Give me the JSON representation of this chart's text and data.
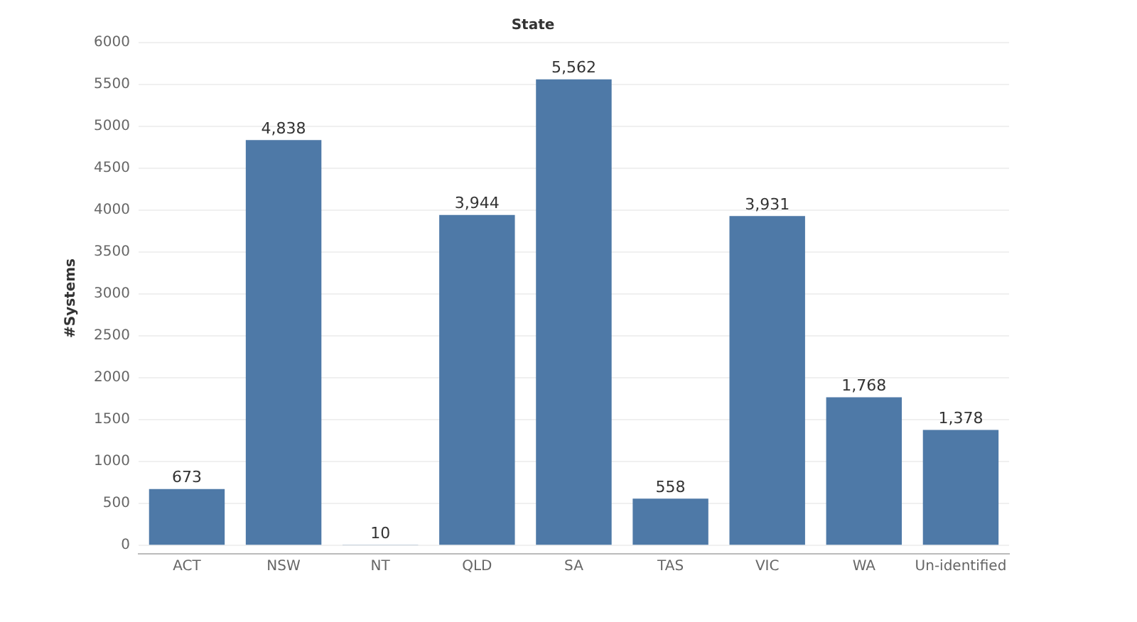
{
  "chart_data": {
    "type": "bar",
    "xlabel": "State",
    "ylabel": "#Systems",
    "categories": [
      "ACT",
      "NSW",
      "NT",
      "QLD",
      "SA",
      "TAS",
      "VIC",
      "WA",
      "Un-identified"
    ],
    "values": [
      673,
      4838,
      10,
      3944,
      5562,
      558,
      3931,
      1768,
      1378
    ],
    "value_labels": [
      "673",
      "4,838",
      "10",
      "3,944",
      "5,562",
      "558",
      "3,931",
      "1,768",
      "1,378"
    ],
    "color": "#4e79a7",
    "ylim": [
      -100,
      6000
    ],
    "yticks": [
      0,
      500,
      1000,
      1500,
      2000,
      2500,
      3000,
      3500,
      4000,
      4500,
      5000,
      5500,
      6000
    ],
    "grid": "y",
    "legend": false
  }
}
